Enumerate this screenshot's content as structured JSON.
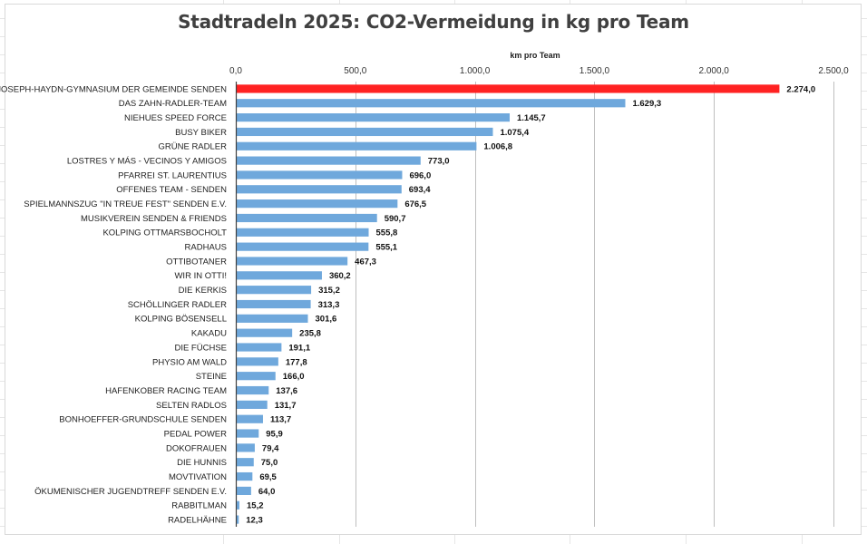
{
  "chart_data": {
    "type": "bar",
    "orientation": "horizontal",
    "title": "Stadtradeln 2025: CO2-Vermeidung in kg pro Team",
    "xlabel": "km pro Team",
    "xlim": [
      0,
      2500
    ],
    "xticks": [
      "0,0",
      "500,0",
      "1.000,0",
      "1.500,0",
      "2.000,0",
      "2.500,0"
    ],
    "xtick_values": [
      0,
      500,
      1000,
      1500,
      2000,
      2500
    ],
    "axis_position": "top",
    "grid": true,
    "bar_color": "#6fa8dc",
    "highlight_color": "#ff2222",
    "highlight_index": 0,
    "categories": [
      "JOSEPH-HAYDN-GYMNASIUM DER GEMEINDE SENDEN",
      "DAS ZAHN-RADLER-TEAM",
      "NIEHUES SPEED FORCE",
      "BUSY BIKER",
      "GRÜNE RADLER",
      "LOSTRES Y MÁS - VECINOS Y AMIGOS",
      "PFARREI ST. LAURENTIUS",
      "OFFENES TEAM - SENDEN",
      "SPIELMANNSZUG \"IN TREUE FEST\" SENDEN E.V.",
      "MUSIKVEREIN SENDEN & FRIENDS",
      "KOLPING OTTMARSBOCHOLT",
      "RADHAUS",
      "OTTIBOTANER",
      "WIR IN OTTI!",
      "DIE KERKIS",
      "SCHÖLLINGER RADLER",
      "KOLPING BÖSENSELL",
      "KAKADU",
      "DIE FÜCHSE",
      "PHYSIO AM WALD",
      "STEINE",
      "HAFENKOBER RACING TEAM",
      "SELTEN RADLOS",
      "BONHOEFFER-GRUNDSCHULE SENDEN",
      "PEDAL POWER",
      "DOKOFRAUEN",
      "DIE HUNNIS",
      "MOVTIVATION",
      "ÖKUMENISCHER JUGENDTREFF SENDEN E.V.",
      "RABBITLMAN",
      "RADELHÄHNE"
    ],
    "values": [
      2274.0,
      1629.3,
      1145.7,
      1075.4,
      1006.8,
      773.0,
      696.0,
      693.4,
      676.5,
      590.7,
      555.8,
      555.1,
      467.3,
      360.2,
      315.2,
      313.3,
      301.6,
      235.8,
      191.1,
      177.8,
      166.0,
      137.6,
      131.7,
      113.7,
      95.9,
      79.4,
      75.0,
      69.5,
      64.0,
      15.2,
      12.3
    ],
    "value_labels": [
      "2.274,0",
      "1.629,3",
      "1.145,7",
      "1.075,4",
      "1.006,8",
      "773,0",
      "696,0",
      "693,4",
      "676,5",
      "590,7",
      "555,8",
      "555,1",
      "467,3",
      "360,2",
      "315,2",
      "313,3",
      "301,6",
      "235,8",
      "191,1",
      "177,8",
      "166,0",
      "137,6",
      "131,7",
      "113,7",
      "95,9",
      "79,4",
      "75,0",
      "69,5",
      "64,0",
      "15,2",
      "12,3"
    ]
  }
}
